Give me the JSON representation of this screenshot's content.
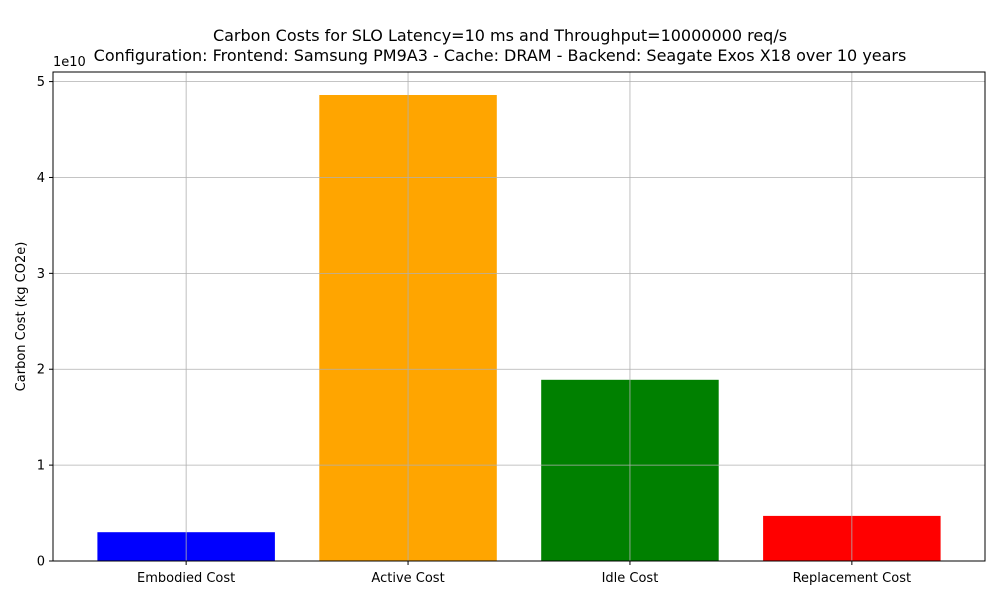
{
  "chart_data": {
    "type": "bar",
    "title": "Carbon Costs for SLO Latency=10 ms and Throughput=10000000 req/s",
    "subtitle": "Configuration: Frontend: Samsung PM9A3 - Cache: DRAM - Backend: Seagate Exos X18 over 10 years",
    "xlabel": "",
    "ylabel": "Carbon Cost (kg CO2e)",
    "y_multiplier_label": "1e10",
    "categories": [
      "Embodied Cost",
      "Active Cost",
      "Idle Cost",
      "Replacement Cost"
    ],
    "values": [
      3000000000.0,
      48600000000.0,
      18900000000.0,
      4700000000.0
    ],
    "colors": [
      "#0000ff",
      "#ffa500",
      "#008000",
      "#ff0000"
    ],
    "yticks": [
      0,
      10000000000.0,
      20000000000.0,
      30000000000.0,
      40000000000.0,
      50000000000.0
    ],
    "ytick_labels": [
      "0",
      "1",
      "2",
      "3",
      "4",
      "5"
    ],
    "ylim": [
      0,
      51000000000.0
    ],
    "grid": true
  }
}
